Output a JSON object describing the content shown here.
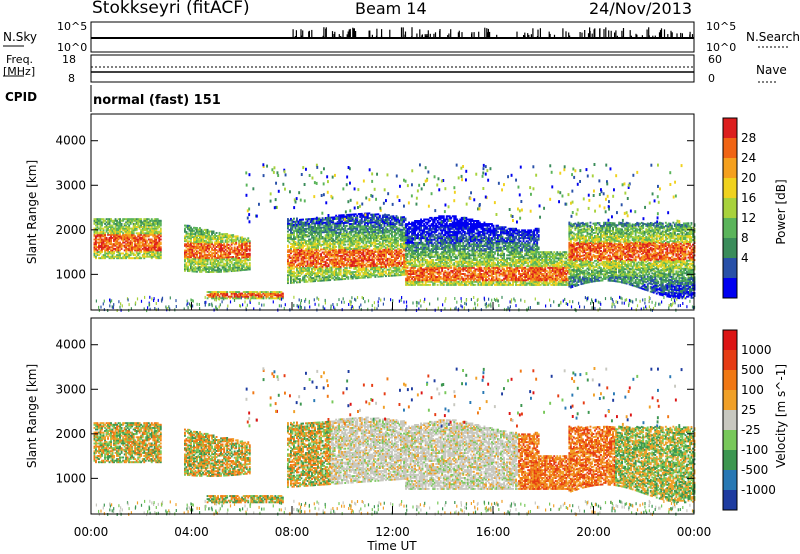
{
  "header": {
    "station": "Stokkseyri (fitACF)",
    "beam": "Beam 14",
    "date": "24/Nov/2013"
  },
  "status_panels": {
    "nsky_label": "N.Sky",
    "nsky_ticks": [
      "10^5",
      "10^0"
    ],
    "nsearch_label": "N.Search",
    "nsearch_ticks": [
      "10^5",
      "10^0"
    ],
    "freq_label": "Freq.",
    "freq_unit": "[MHz]",
    "freq_ticks": [
      "18",
      "8"
    ],
    "nave_label": "Nave",
    "nave_ticks": [
      "60",
      "0"
    ],
    "cpid_label": "CPID",
    "cpid_value": "normal (fast) 151"
  },
  "chart_data": [
    {
      "type": "heatmap",
      "name": "power",
      "ylabel": "Slant Range [km]",
      "ylim": [
        200,
        4600
      ],
      "yticks": [
        "1000",
        "2000",
        "3000",
        "4000"
      ],
      "xlim": [
        0,
        24
      ],
      "colorbar_label": "Power [dB]",
      "colorbar_ticks": [
        "28",
        "24",
        "20",
        "16",
        "12",
        "8",
        "4"
      ],
      "colors": [
        "#0000f0",
        "#2850a8",
        "#3a8c5a",
        "#5ab45a",
        "#a8d23c",
        "#f0d21e",
        "#f5a01e",
        "#f06414",
        "#dc1e1e"
      ]
    },
    {
      "type": "heatmap",
      "name": "velocity",
      "ylabel": "Slant Range [km]",
      "ylim": [
        200,
        4600
      ],
      "yticks": [
        "1000",
        "2000",
        "3000",
        "4000"
      ],
      "xlim": [
        0,
        24
      ],
      "xticks": [
        "00:00",
        "04:00",
        "08:00",
        "12:00",
        "16:00",
        "20:00",
        "00:00"
      ],
      "xlabel": "Time UT",
      "colorbar_label": "Velocity [m s^-1]",
      "colorbar_ticks": [
        "1000",
        "500",
        "100",
        "25",
        "-25",
        "-100",
        "-500",
        "-1000"
      ],
      "colors": [
        "#1e3ca0",
        "#2878b4",
        "#3c9650",
        "#78c85a",
        "#c8c8c0",
        "#f0a028",
        "#f07814",
        "#e63c14",
        "#dc1414"
      ]
    }
  ]
}
